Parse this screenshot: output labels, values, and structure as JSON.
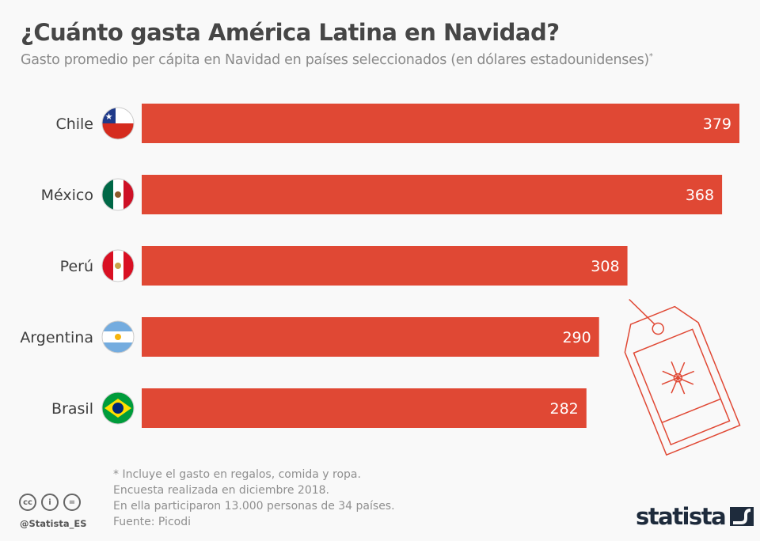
{
  "header": {
    "title": "¿Cuánto gasta América Latina en Navidad?",
    "subtitle": "Gasto promedio per cápita en Navidad en países seleccionados (en dólares estadounidenses)",
    "subtitle_mark": "*"
  },
  "chart_data": {
    "type": "bar",
    "orientation": "horizontal",
    "categories": [
      "Chile",
      "México",
      "Perú",
      "Argentina",
      "Brasil"
    ],
    "values": [
      379,
      368,
      308,
      290,
      282
    ],
    "xlim": [
      0,
      379
    ],
    "grid": false,
    "bar_color": "#e04834",
    "label_color": "#ffffff",
    "icons": [
      "flag-chile",
      "flag-mexico",
      "flag-peru",
      "flag-argentina",
      "flag-brazil"
    ]
  },
  "footer": {
    "notes": [
      "* Incluye el gasto en regalos, comida y ropa.",
      "Encuesta realizada en diciembre 2018.",
      "En ella participaron 13.000 personas de 34 países."
    ],
    "source": "Fuente: Picodi",
    "handle": "@Statista_ES",
    "cc_icons": [
      "cc",
      "i",
      "="
    ],
    "logo": "statista"
  }
}
